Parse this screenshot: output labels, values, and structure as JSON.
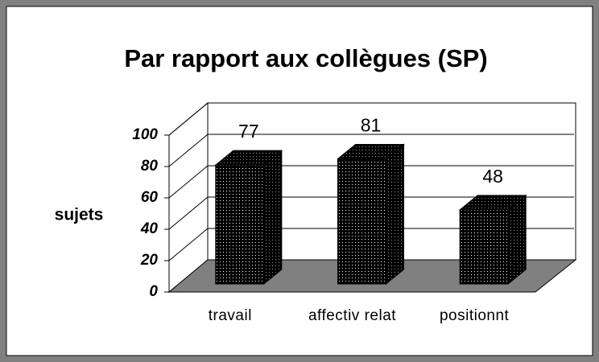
{
  "chart_data": {
    "type": "bar3d",
    "title": "Par rapport aux collègues (SP)",
    "y_label": "sujets",
    "categories": [
      "travail",
      "affectiv relat",
      "positionnt"
    ],
    "values": [
      77,
      81,
      48
    ],
    "color": "#000000",
    "ylim": [
      0,
      100
    ],
    "yticks": [
      0,
      20,
      40,
      60,
      80,
      100
    ],
    "grid": true
  }
}
